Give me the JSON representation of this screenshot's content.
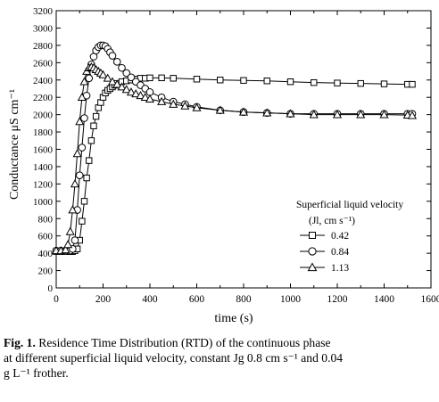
{
  "chart_data": {
    "type": "scatter",
    "xlabel": "time (s)",
    "ylabel": "Conductance μS cm⁻¹",
    "xlim": [
      0,
      1600
    ],
    "ylim": [
      0,
      3200
    ],
    "xticks": [
      "0",
      "200",
      "400",
      "600",
      "800",
      "1000",
      "1200",
      "1400",
      "1600"
    ],
    "yticks": [
      "0",
      "200",
      "400",
      "600",
      "800",
      "1000",
      "1200",
      "1400",
      "1600",
      "1800",
      "2000",
      "2200",
      "2400",
      "2600",
      "2800",
      "3000",
      "3200"
    ],
    "legend": {
      "title_line1": "Superficial  liquid velocity",
      "title_line2": "(Jl, cm s⁻¹)",
      "placement": "right"
    },
    "series": [
      {
        "name": "0.42",
        "marker": "square",
        "x": [
          0,
          20,
          40,
          60,
          70,
          80,
          90,
          100,
          110,
          120,
          130,
          140,
          150,
          160,
          170,
          180,
          190,
          200,
          210,
          220,
          230,
          240,
          250,
          260,
          280,
          300,
          320,
          340,
          360,
          380,
          400,
          450,
          500,
          600,
          700,
          800,
          900,
          1000,
          1100,
          1200,
          1300,
          1400,
          1500,
          1520
        ],
        "y": [
          420,
          420,
          420,
          420,
          420,
          430,
          450,
          550,
          770,
          1000,
          1270,
          1470,
          1700,
          1870,
          1980,
          2080,
          2140,
          2200,
          2250,
          2280,
          2300,
          2320,
          2340,
          2360,
          2380,
          2390,
          2400,
          2410,
          2420,
          2420,
          2425,
          2425,
          2420,
          2410,
          2400,
          2395,
          2390,
          2380,
          2370,
          2365,
          2360,
          2355,
          2350,
          2350
        ]
      },
      {
        "name": "0.84",
        "marker": "circle",
        "x": [
          0,
          20,
          40,
          60,
          70,
          80,
          90,
          100,
          110,
          120,
          130,
          140,
          150,
          160,
          170,
          180,
          190,
          200,
          210,
          220,
          230,
          240,
          260,
          280,
          300,
          320,
          340,
          360,
          380,
          400,
          450,
          500,
          550,
          600,
          700,
          800,
          900,
          1000,
          1100,
          1200,
          1300,
          1400,
          1500,
          1520
        ],
        "y": [
          430,
          430,
          430,
          430,
          450,
          550,
          900,
          1300,
          1620,
          1960,
          2220,
          2420,
          2580,
          2670,
          2740,
          2780,
          2800,
          2800,
          2790,
          2760,
          2720,
          2680,
          2610,
          2540,
          2480,
          2430,
          2380,
          2340,
          2300,
          2260,
          2200,
          2150,
          2120,
          2090,
          2050,
          2030,
          2020,
          2010,
          2010,
          2010,
          2010,
          2010,
          2010,
          2010
        ]
      },
      {
        "name": "1.13",
        "marker": "triangle",
        "x": [
          0,
          20,
          40,
          50,
          60,
          70,
          80,
          90,
          100,
          110,
          120,
          130,
          140,
          150,
          160,
          170,
          180,
          190,
          200,
          220,
          240,
          260,
          280,
          300,
          320,
          340,
          360,
          380,
          400,
          450,
          500,
          550,
          600,
          700,
          800,
          900,
          1000,
          1100,
          1200,
          1300,
          1400,
          1500,
          1520
        ],
        "y": [
          430,
          430,
          440,
          500,
          650,
          900,
          1200,
          1550,
          1920,
          2200,
          2380,
          2500,
          2540,
          2550,
          2540,
          2520,
          2500,
          2480,
          2460,
          2420,
          2380,
          2350,
          2320,
          2290,
          2260,
          2240,
          2220,
          2200,
          2180,
          2150,
          2120,
          2100,
          2080,
          2050,
          2030,
          2020,
          2010,
          2000,
          2000,
          2000,
          2000,
          1995,
          1990
        ]
      }
    ]
  },
  "caption": {
    "label": "Fig. 1.",
    "text_line1": " Residence Time Distribution (RTD) of the continuous phase",
    "text_line2": "at different superficial liquid velocity, constant Jg 0.8 cm s⁻¹ and 0.04",
    "text_line3": "g L⁻¹ frother."
  }
}
